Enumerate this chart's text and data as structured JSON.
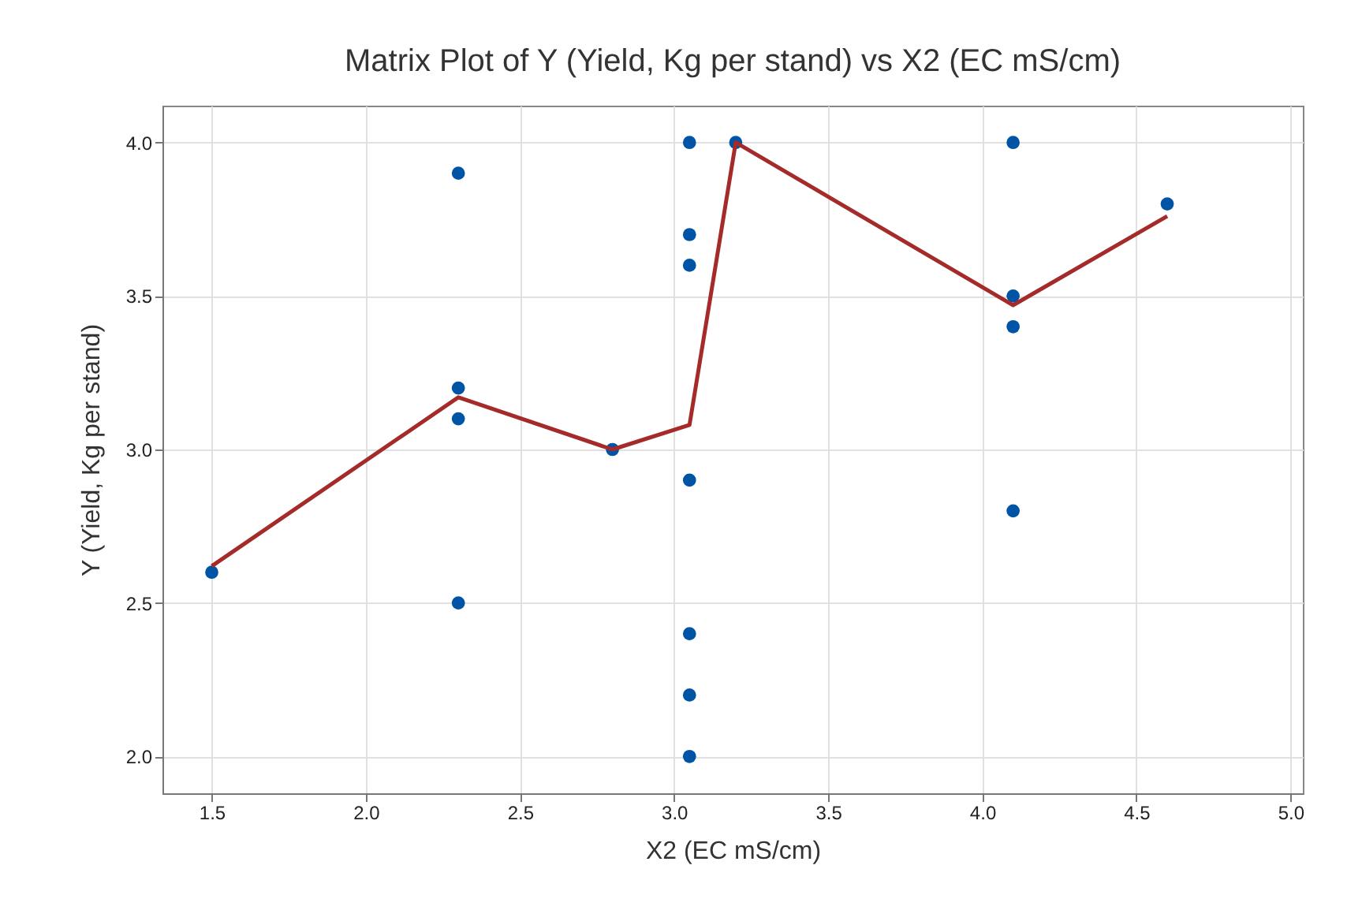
{
  "chart_data": {
    "type": "scatter",
    "title": "Matrix Plot of Y (Yield, Kg per stand) vs X2 (EC mS/cm)",
    "xlabel": "X2 (EC mS/cm)",
    "ylabel": "Y (Yield, Kg per stand)",
    "xlim": [
      1.34,
      5.04
    ],
    "ylim": [
      1.88,
      4.12
    ],
    "xticks": [
      {
        "value": 1.5,
        "label": "1.5"
      },
      {
        "value": 2,
        "label": "2.0"
      },
      {
        "value": 2.5,
        "label": "2.5"
      },
      {
        "value": 3,
        "label": "3.0"
      },
      {
        "value": 3.5,
        "label": "3.5"
      },
      {
        "value": 4,
        "label": "4.0"
      },
      {
        "value": 4.5,
        "label": "4.5"
      },
      {
        "value": 5,
        "label": "5.0"
      }
    ],
    "yticks": [
      {
        "value": 2,
        "label": "2.0"
      },
      {
        "value": 2.5,
        "label": "2.5"
      },
      {
        "value": 3,
        "label": "3.0"
      },
      {
        "value": 3.5,
        "label": "3.5"
      },
      {
        "value": 4,
        "label": "4.0"
      }
    ],
    "grid": true,
    "series": [
      {
        "marker": "circle",
        "color": "#0054a6",
        "x": [
          1.5,
          2.3,
          2.3,
          2.3,
          2.3,
          2.8,
          3.05,
          3.05,
          3.05,
          3.05,
          3.05,
          3.05,
          3.05,
          3.2,
          4.1,
          4.1,
          4.1,
          4.1,
          4.6
        ],
        "values": [
          2.6,
          3.9,
          3.2,
          3.1,
          2.5,
          3.0,
          4.0,
          3.7,
          3.6,
          2.9,
          2.4,
          2.2,
          2.0,
          4.0,
          4.0,
          3.5,
          3.4,
          2.8,
          3.8
        ]
      },
      {
        "type": "line",
        "color": "#a52a2a",
        "line_style": "solid",
        "x": [
          1.5,
          2.3,
          2.8,
          3.05,
          3.2,
          4.1,
          4.6
        ],
        "values": [
          2.62,
          3.17,
          3.0,
          3.08,
          4.0,
          3.47,
          3.76
        ]
      }
    ]
  }
}
